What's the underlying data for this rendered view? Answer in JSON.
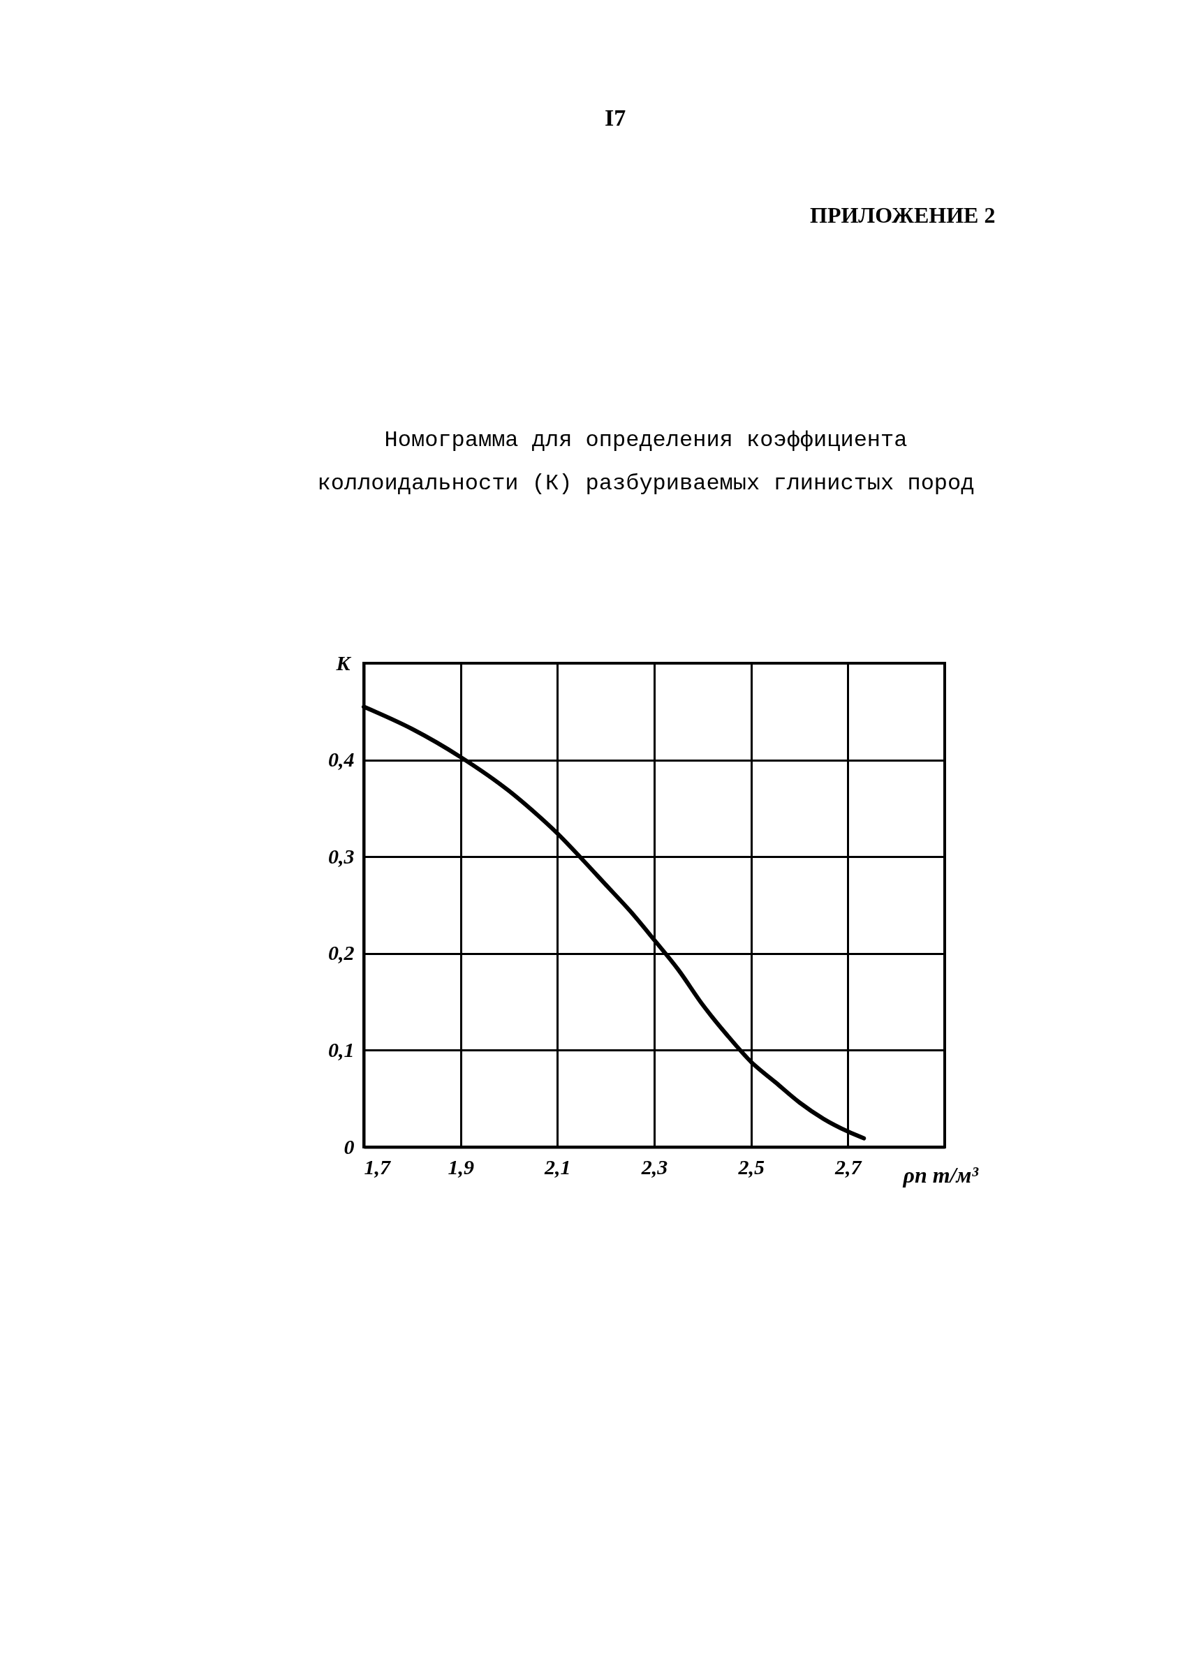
{
  "chart_data": {
    "type": "line",
    "title": "Номограмма для определения коэффициента\nколлоидальности (К) разбуриваемых глинистых пород",
    "xlabel": "ρп т/м³",
    "ylabel": "K",
    "annotations": [
      "I7",
      "ПРИЛОЖЕНИЕ 2"
    ],
    "x": [
      1.7,
      1.8,
      1.9,
      2.0,
      2.05,
      2.1,
      2.15,
      2.2,
      2.25,
      2.3,
      2.35,
      2.4,
      2.45,
      2.5,
      2.55,
      2.6,
      2.65,
      2.7,
      2.733
    ],
    "series": [
      {
        "color": "#000000",
        "values": [
          0.455,
          0.432,
          0.403,
          0.368,
          0.347,
          0.324,
          0.298,
          0.271,
          0.244,
          0.214,
          0.183,
          0.147,
          0.116,
          0.088,
          0.067,
          0.046,
          0.029,
          0.016,
          0.009
        ]
      }
    ],
    "xlim": [
      1.7,
      2.9
    ],
    "ylim": [
      0,
      0.5
    ],
    "xticks": [
      {
        "value": 1.7,
        "label": "1,7"
      },
      {
        "value": 1.9,
        "label": "1,9"
      },
      {
        "value": 2.1,
        "label": "2,1"
      },
      {
        "value": 2.3,
        "label": "2,3"
      },
      {
        "value": 2.5,
        "label": "2,5"
      },
      {
        "value": 2.7,
        "label": "2,7"
      }
    ],
    "yticks": [
      0,
      {
        "value": 0.1,
        "label": "0,1"
      },
      {
        "value": 0.2,
        "label": "0,2"
      },
      {
        "value": 0.3,
        "label": "0,3"
      },
      {
        "value": 0.4,
        "label": "0,4"
      }
    ],
    "grid": true,
    "line_style": "solid"
  }
}
